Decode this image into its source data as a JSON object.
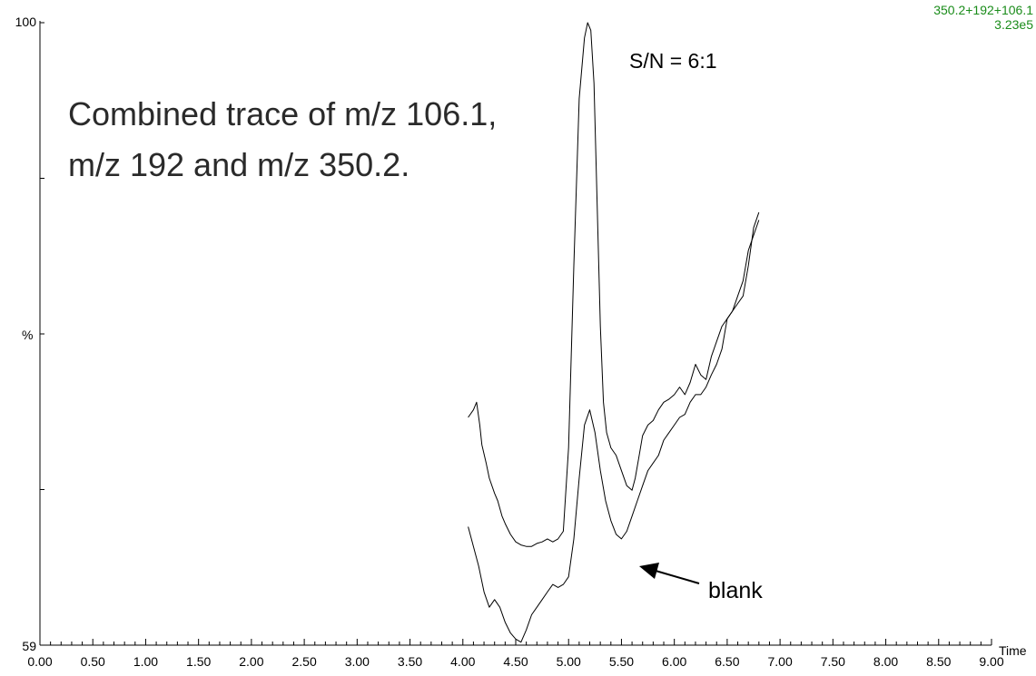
{
  "chart_data": {
    "type": "line",
    "title": "",
    "xlabel": "Time",
    "ylabel": "%",
    "xlim": [
      0.0,
      9.0
    ],
    "ylim": [
      59,
      100
    ],
    "x_ticks": [
      "0.00",
      "0.50",
      "1.00",
      "1.50",
      "2.00",
      "2.50",
      "3.00",
      "3.50",
      "4.00",
      "4.50",
      "5.00",
      "5.50",
      "6.00",
      "6.50",
      "7.00",
      "7.50",
      "8.00",
      "8.50",
      "9.00"
    ],
    "y_ticks": [
      "59",
      "100"
    ],
    "trace_id": "350.2+192+106.1",
    "trace_intensity": "3.23e5",
    "annotations": {
      "combined_line1": "Combined trace of m/z 106.1,",
      "combined_line2": "m/z 192 and m/z 350.2.",
      "sn": "S/N = 6:1",
      "blank": "blank"
    },
    "series": [
      {
        "x": [
          4.05,
          4.1,
          4.13,
          4.16,
          4.18,
          4.22,
          4.25,
          4.3,
          4.33,
          4.37,
          4.4,
          4.45,
          4.5,
          4.55,
          4.6,
          4.65,
          4.7,
          4.75,
          4.8,
          4.85,
          4.9,
          4.95,
          5.0,
          5.05,
          5.1,
          5.15,
          5.18,
          5.21,
          5.24,
          5.27,
          5.3,
          5.33,
          5.36,
          5.4,
          5.45,
          5.5,
          5.55,
          5.6,
          5.63,
          5.66,
          5.7,
          5.75,
          5.8,
          5.85,
          5.9,
          5.95,
          6.0,
          6.05,
          6.1,
          6.15,
          6.2,
          6.25,
          6.3,
          6.35,
          6.4,
          6.45,
          6.5,
          6.55,
          6.6,
          6.65,
          6.7,
          6.75,
          6.8
        ],
        "y": [
          74.0,
          74.5,
          75.0,
          73.5,
          72.2,
          71.0,
          70.0,
          69.0,
          68.5,
          67.5,
          67.0,
          66.3,
          65.8,
          65.6,
          65.5,
          65.5,
          65.7,
          65.8,
          66.0,
          65.8,
          66.0,
          66.5,
          72.0,
          84.0,
          95.0,
          99.0,
          100.0,
          99.5,
          96.0,
          88.0,
          80.0,
          75.0,
          73.0,
          72.0,
          71.5,
          70.5,
          69.5,
          69.2,
          70.0,
          71.2,
          72.8,
          73.5,
          73.8,
          74.5,
          75.0,
          75.2,
          75.5,
          76.0,
          75.5,
          76.3,
          77.5,
          76.8,
          76.5,
          78.0,
          79.0,
          80.0,
          80.5,
          81.0,
          81.5,
          82.0,
          84.0,
          86.5,
          87.5
        ]
      },
      {
        "x": [
          4.05,
          4.1,
          4.15,
          4.2,
          4.25,
          4.3,
          4.35,
          4.4,
          4.45,
          4.5,
          4.55,
          4.6,
          4.65,
          4.7,
          4.75,
          4.8,
          4.85,
          4.9,
          4.95,
          5.0,
          5.05,
          5.1,
          5.15,
          5.2,
          5.25,
          5.3,
          5.35,
          5.4,
          5.45,
          5.5,
          5.55,
          5.6,
          5.65,
          5.7,
          5.75,
          5.8,
          5.85,
          5.9,
          5.95,
          6.0,
          6.05,
          6.1,
          6.15,
          6.2,
          6.25,
          6.3,
          6.35,
          6.4,
          6.45,
          6.5,
          6.55,
          6.6,
          6.65,
          6.7,
          6.75,
          6.8
        ],
        "y": [
          66.8,
          65.5,
          64.2,
          62.5,
          61.5,
          62.0,
          61.5,
          60.5,
          59.8,
          59.4,
          59.2,
          60.0,
          61.0,
          61.5,
          62.0,
          62.5,
          63.0,
          62.8,
          63.0,
          63.5,
          66.0,
          70.0,
          73.5,
          74.5,
          73.0,
          70.5,
          68.5,
          67.2,
          66.3,
          66.0,
          66.5,
          67.5,
          68.5,
          69.5,
          70.5,
          71.0,
          71.5,
          72.5,
          73.0,
          73.5,
          74.0,
          74.2,
          75.0,
          75.5,
          75.5,
          76.0,
          76.8,
          77.5,
          78.5,
          80.5,
          81.0,
          82.0,
          83.0,
          85.0,
          86.0,
          87.0
        ]
      }
    ]
  }
}
